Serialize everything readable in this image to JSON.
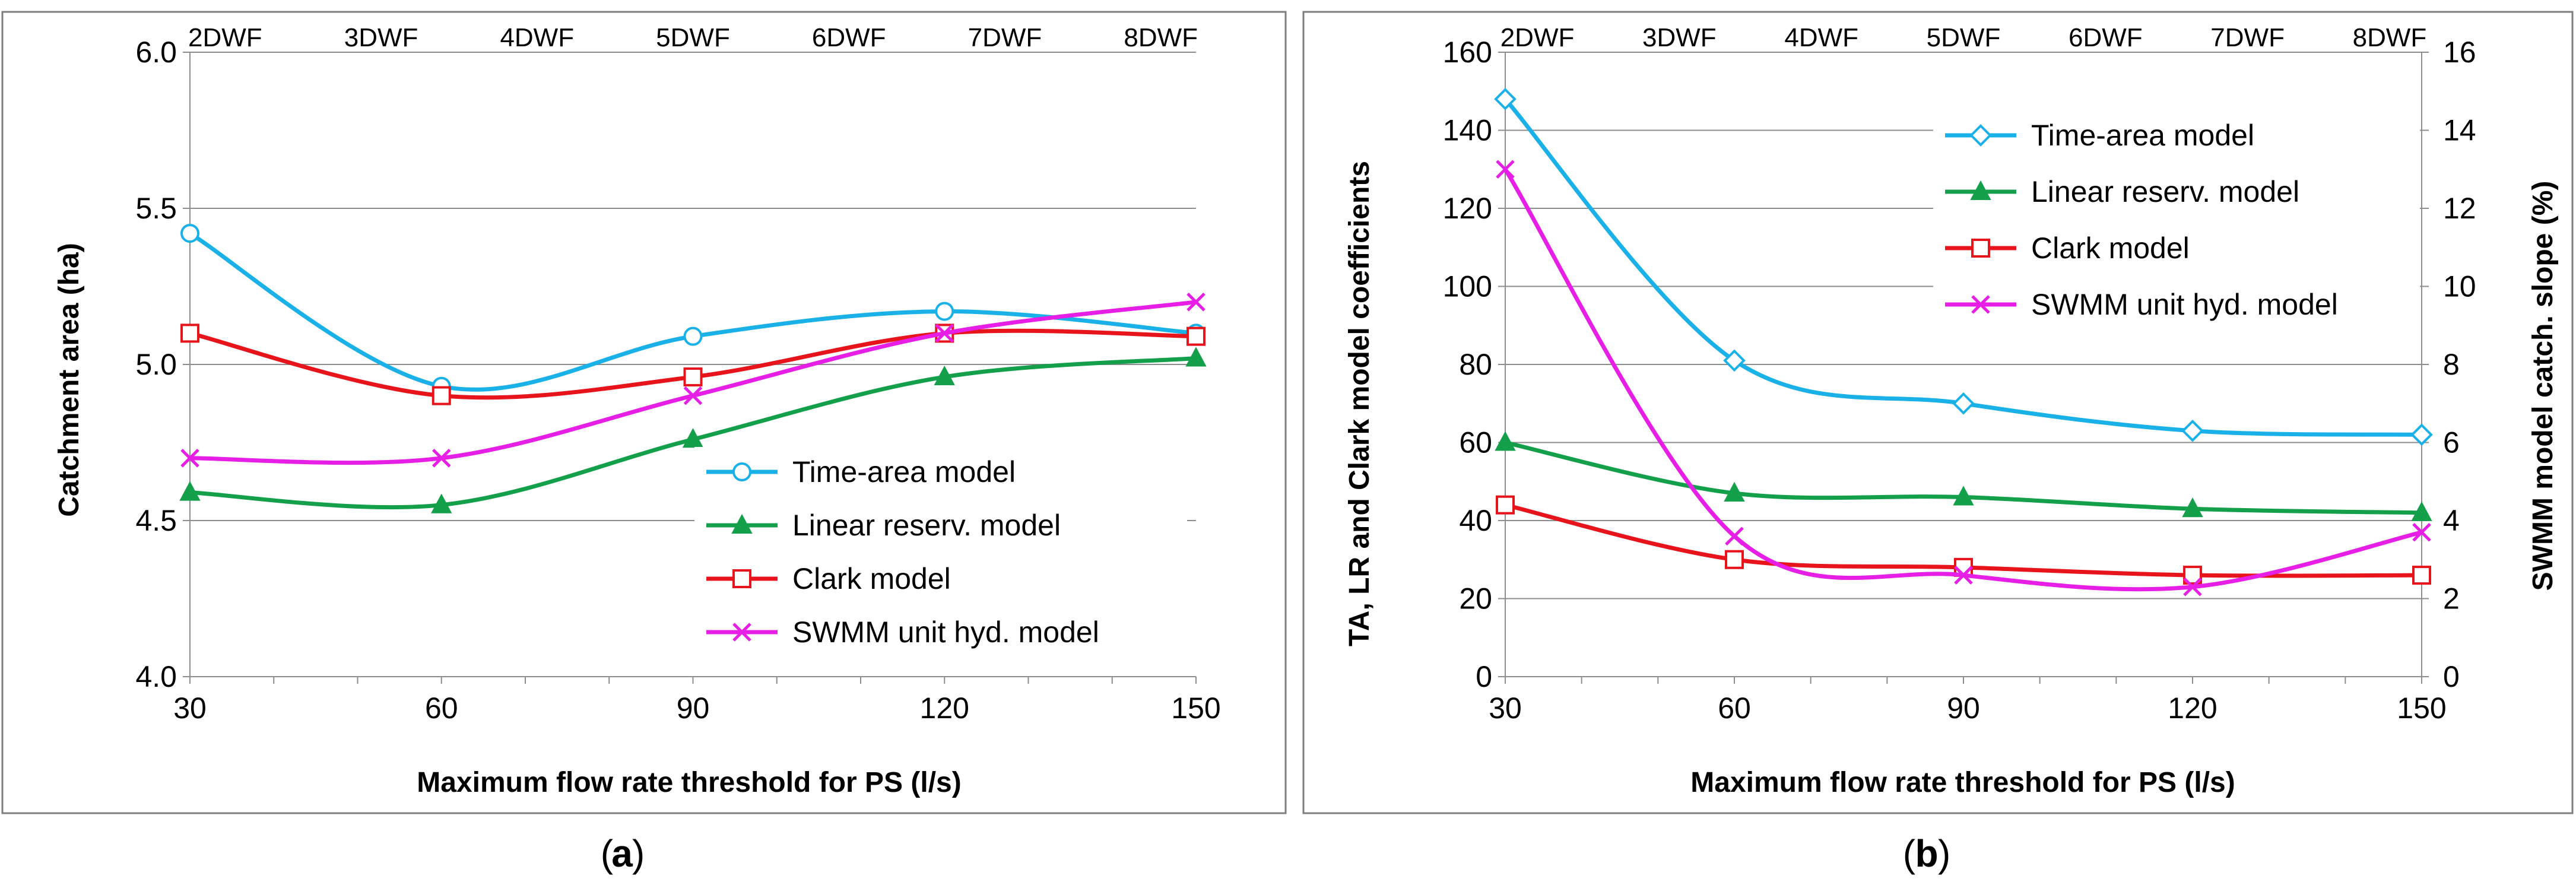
{
  "chart_data": [
    {
      "panel_label": "a",
      "type": "line",
      "x": [
        30,
        60,
        90,
        120,
        150
      ],
      "xlim": [
        30,
        150
      ],
      "xticks": [
        "30",
        "60",
        "90",
        "120",
        "150"
      ],
      "xlabel": "Maximum flow rate threshold for PS (l/s)",
      "top_ticks": [
        "2DWF",
        "3DWF",
        "4DWF",
        "5DWF",
        "6DWF",
        "7DWF",
        "8DWF"
      ],
      "ylabel": "Catchment area (ha)",
      "ylim": [
        4.0,
        6.0
      ],
      "yticks": [
        "4.0",
        "4.5",
        "5.0",
        "5.5",
        "6.0"
      ],
      "grid": true,
      "legend": "bottom-right",
      "series": [
        {
          "name": "Time-area model",
          "color": "#1ab0e8",
          "marker": "circle",
          "axis": "left",
          "values": [
            5.42,
            4.93,
            5.09,
            5.17,
            5.1
          ]
        },
        {
          "name": "Linear reserv. model",
          "color": "#14a04a",
          "marker": "triangle",
          "axis": "left",
          "values": [
            4.59,
            4.55,
            4.76,
            4.96,
            5.02
          ]
        },
        {
          "name": "Clark model",
          "color": "#e8141c",
          "marker": "square",
          "axis": "left",
          "values": [
            5.1,
            4.9,
            4.96,
            5.1,
            5.09
          ]
        },
        {
          "name": "SWMM unit hyd. model",
          "color": "#e61ee6",
          "marker": "x",
          "axis": "left",
          "values": [
            4.7,
            4.7,
            4.9,
            5.1,
            5.2
          ]
        }
      ]
    },
    {
      "panel_label": "b",
      "type": "line",
      "x": [
        30,
        60,
        90,
        120,
        150
      ],
      "xlim": [
        30,
        150
      ],
      "xticks": [
        "30",
        "60",
        "90",
        "120",
        "150"
      ],
      "xlabel": "Maximum flow rate threshold for PS (l/s)",
      "top_ticks": [
        "2DWF",
        "3DWF",
        "4DWF",
        "5DWF",
        "6DWF",
        "7DWF",
        "8DWF"
      ],
      "ylabel": "TA, LR and Clark model coefficients",
      "ylim": [
        0,
        160
      ],
      "yticks": [
        "0",
        "20",
        "40",
        "60",
        "80",
        "100",
        "120",
        "140",
        "160"
      ],
      "y2label": "SWMM model catch. slope (%)",
      "y2lim": [
        0,
        16
      ],
      "y2ticks": [
        "0",
        "2",
        "4",
        "6",
        "8",
        "10",
        "12",
        "14",
        "16"
      ],
      "grid": true,
      "legend": "top-right",
      "series": [
        {
          "name": "Time-area model",
          "color": "#1ab0e8",
          "marker": "diamond",
          "axis": "left",
          "values": [
            148,
            81,
            70,
            63,
            62
          ]
        },
        {
          "name": "Linear reserv. model",
          "color": "#14a04a",
          "marker": "triangle",
          "axis": "left",
          "values": [
            60,
            47,
            46,
            43,
            42
          ]
        },
        {
          "name": "Clark model",
          "color": "#e8141c",
          "marker": "square",
          "axis": "left",
          "values": [
            44,
            30,
            28,
            26,
            26
          ]
        },
        {
          "name": "SWMM unit hyd. model",
          "color": "#e61ee6",
          "marker": "x",
          "axis": "right",
          "values": [
            13.0,
            3.6,
            2.6,
            2.3,
            3.7
          ]
        }
      ]
    }
  ]
}
